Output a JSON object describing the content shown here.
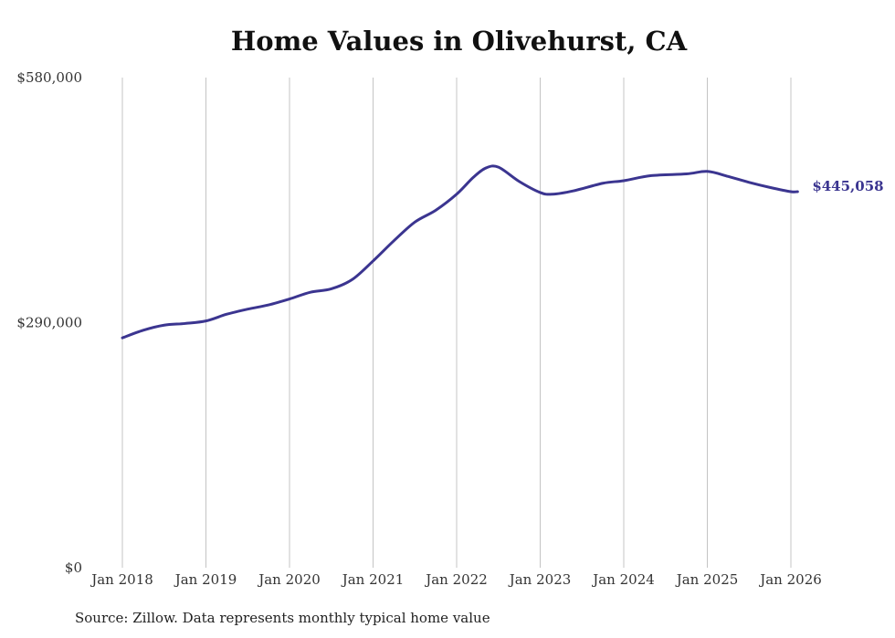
{
  "chart_data": {
    "type": "line",
    "title": "Home Values in Olivehurst, CA",
    "source": "Source: Zillow. Data represents monthly typical home value",
    "ylim": [
      0,
      580000
    ],
    "y_ticks": [
      {
        "value": 0,
        "label": "$0"
      },
      {
        "value": 290000,
        "label": "$290,000"
      },
      {
        "value": 580000,
        "label": "$580,000"
      }
    ],
    "x_range": [
      2018.0,
      2026.0
    ],
    "x_ticks": [
      {
        "value": 2018,
        "label": "Jan 2018"
      },
      {
        "value": 2019,
        "label": "Jan 2019"
      },
      {
        "value": 2020,
        "label": "Jan 2020"
      },
      {
        "value": 2021,
        "label": "Jan 2021"
      },
      {
        "value": 2022,
        "label": "Jan 2022"
      },
      {
        "value": 2023,
        "label": "Jan 2023"
      },
      {
        "value": 2024,
        "label": "Jan 2024"
      },
      {
        "value": 2025,
        "label": "Jan 2025"
      },
      {
        "value": 2026,
        "label": "Jan 2026"
      }
    ],
    "grid": "vertical",
    "series": [
      {
        "name": "Olivehurst, CA",
        "color": "#3b3590",
        "end_label": "$445,058",
        "x": [
          2018.0,
          2018.25,
          2018.5,
          2018.75,
          2019.0,
          2019.25,
          2019.5,
          2019.75,
          2020.0,
          2020.25,
          2020.5,
          2020.75,
          2021.0,
          2021.25,
          2021.5,
          2021.75,
          2022.0,
          2022.2,
          2022.35,
          2022.5,
          2022.75,
          2023.0,
          2023.15,
          2023.4,
          2023.75,
          2024.0,
          2024.33,
          2024.75,
          2025.0,
          2025.25,
          2025.5,
          2025.75,
          2026.0,
          2026.08
        ],
        "values": [
          272000,
          281000,
          287000,
          289000,
          292000,
          300000,
          306000,
          311000,
          318000,
          326000,
          330000,
          341000,
          363000,
          387000,
          409000,
          423000,
          442000,
          462000,
          473000,
          474000,
          457000,
          444000,
          442000,
          446000,
          455000,
          458000,
          464000,
          466000,
          469000,
          463000,
          456000,
          450000,
          445000,
          445058
        ]
      }
    ]
  }
}
